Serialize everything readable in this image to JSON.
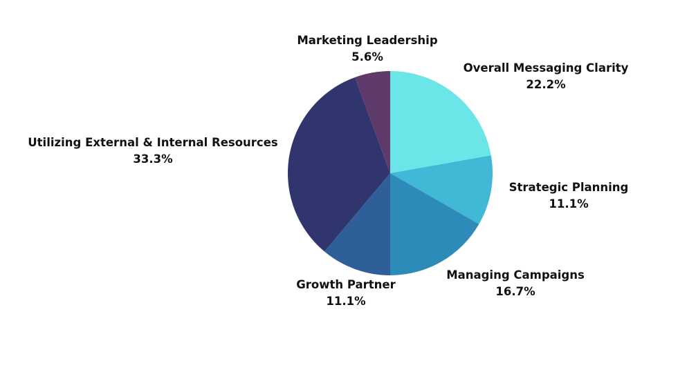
{
  "chart_data": {
    "type": "pie",
    "title": "",
    "start_angle_deg": 0,
    "direction": "clockwise",
    "slices": [
      {
        "label": "Overall Messaging Clarity",
        "value": 22.2,
        "display": "22.2%",
        "color": "#6ce5e8"
      },
      {
        "label": "Strategic Planning",
        "value": 11.1,
        "display": "11.1%",
        "color": "#41b8d5"
      },
      {
        "label": "Managing Campaigns",
        "value": 16.7,
        "display": "16.7%",
        "color": "#2d8bba"
      },
      {
        "label": "Growth Partner",
        "value": 11.1,
        "display": "11.1%",
        "color": "#2f5f98"
      },
      {
        "label": "Utilizing External & Internal Resources",
        "value": 33.3,
        "display": "33.3%",
        "color": "#31356e"
      },
      {
        "label": "Marketing Leadership",
        "value": 5.6,
        "display": "5.6%",
        "color": "#5d3a6a"
      }
    ]
  }
}
